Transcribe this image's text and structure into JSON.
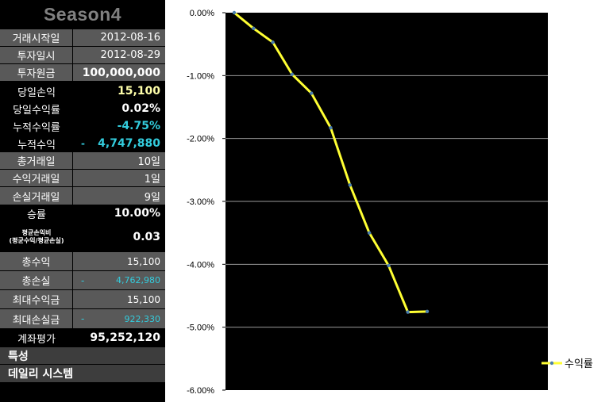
{
  "panel": {
    "title": "Season4",
    "rows": [
      {
        "label": "거래시작일",
        "value": "2012-08-16"
      },
      {
        "label": "투자일시",
        "value": "2012-08-29"
      },
      {
        "label": "투자원금",
        "value": "100,000,000"
      },
      {
        "label": "당일손익",
        "value": "15,100"
      },
      {
        "label": "당일수익률",
        "value": "0.02%"
      },
      {
        "label": "누적수익률",
        "value": "-4.75%"
      },
      {
        "label": "누적수익",
        "prefix": "-",
        "value": "4,747,880"
      },
      {
        "label": "총거래일",
        "value": "10일"
      },
      {
        "label": "수익거래일",
        "value": "1일"
      },
      {
        "label": "손실거래일",
        "value": "9일"
      },
      {
        "label": "승률",
        "value": "10.00%"
      },
      {
        "label_line1": "평균손익비",
        "label_line2": "(평균수익/평균손실)",
        "value": "0.03"
      },
      {
        "label": "총수익",
        "value": "15,100"
      },
      {
        "label": "총손실",
        "prefix": "-",
        "value": "4,762,980"
      },
      {
        "label": "최대수익금",
        "value": "15,100"
      },
      {
        "label": "최대손실금",
        "prefix": "-",
        "value": "922,330"
      },
      {
        "label": "계좌평가",
        "value": "95,252,120"
      }
    ],
    "footer": [
      "특성",
      "데일리 시스템"
    ]
  },
  "colors": {
    "line": "#ffff33",
    "plot_bg": "#000000",
    "cyan_value": "#33ccdd",
    "gray_row": "#595959"
  },
  "chart_data": {
    "type": "line",
    "title": "",
    "xlabel": "",
    "ylabel": "",
    "ylim": [
      -6.0,
      0.0
    ],
    "yticks": [
      "0.00%",
      "-1.00%",
      "-2.00%",
      "-3.00%",
      "-4.00%",
      "-5.00%",
      "-6.00%"
    ],
    "grid": true,
    "legend_position": "right",
    "series": [
      {
        "name": "수익률",
        "color": "#ffff33",
        "values": [
          0.0,
          -0.25,
          -0.47,
          -0.98,
          -1.28,
          -1.83,
          -2.74,
          -3.5,
          -4.02,
          -4.76,
          -4.75
        ]
      }
    ]
  }
}
